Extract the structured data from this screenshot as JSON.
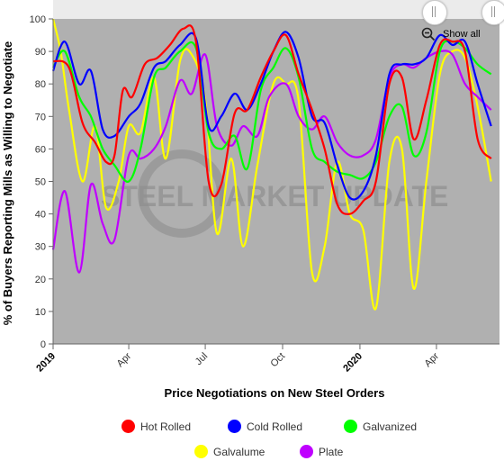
{
  "zoom": {
    "show_all_label": "Show all",
    "icon": "zoom-out-icon"
  },
  "watermark": {
    "text": "STEEL MARKET UPDATE"
  },
  "chart_data": {
    "type": "line",
    "xlabel": "Price Negotiations on New Steel Orders",
    "ylabel": "% of Buyers Reporting Mills as Willing to Negotiate",
    "ylim": [
      0,
      100
    ],
    "yticks": [
      0,
      10,
      20,
      30,
      40,
      50,
      60,
      70,
      80,
      90,
      100
    ],
    "xlim": [
      "2019-01-01",
      "2020-06-15"
    ],
    "xticks": [
      {
        "date": "2019-01-01",
        "label": "2019",
        "bold": true
      },
      {
        "date": "2019-04-01",
        "label": "Apr",
        "bold": false
      },
      {
        "date": "2019-07-01",
        "label": "Jul",
        "bold": false
      },
      {
        "date": "2019-10-01",
        "label": "Oct",
        "bold": false
      },
      {
        "date": "2020-01-01",
        "label": "2020",
        "bold": true
      },
      {
        "date": "2020-04-01",
        "label": "Apr",
        "bold": false
      }
    ],
    "grid": false,
    "legend_position": "bottom",
    "plot_background": "#b0b0b0",
    "series": [
      {
        "name": "Hot Rolled",
        "color": "#ff0000",
        "points": [
          [
            "2019-01-01",
            87
          ],
          [
            "2019-01-20",
            85
          ],
          [
            "2019-02-05",
            68
          ],
          [
            "2019-02-20",
            62
          ],
          [
            "2019-03-05",
            56
          ],
          [
            "2019-03-15",
            58
          ],
          [
            "2019-03-25",
            78
          ],
          [
            "2019-04-05",
            76
          ],
          [
            "2019-04-20",
            86
          ],
          [
            "2019-05-05",
            88
          ],
          [
            "2019-05-20",
            92
          ],
          [
            "2019-06-05",
            97
          ],
          [
            "2019-06-20",
            93
          ],
          [
            "2019-07-05",
            50
          ],
          [
            "2019-07-20",
            49
          ],
          [
            "2019-08-05",
            71
          ],
          [
            "2019-08-20",
            72
          ],
          [
            "2019-09-05",
            82
          ],
          [
            "2019-09-20",
            90
          ],
          [
            "2019-10-05",
            95
          ],
          [
            "2019-10-20",
            83
          ],
          [
            "2019-11-05",
            72
          ],
          [
            "2019-11-20",
            60
          ],
          [
            "2019-12-05",
            43
          ],
          [
            "2019-12-20",
            40
          ],
          [
            "2020-01-05",
            44
          ],
          [
            "2020-01-20",
            50
          ],
          [
            "2020-02-05",
            80
          ],
          [
            "2020-02-20",
            82
          ],
          [
            "2020-03-05",
            63
          ],
          [
            "2020-03-20",
            75
          ],
          [
            "2020-04-05",
            92
          ],
          [
            "2020-04-20",
            93
          ],
          [
            "2020-05-05",
            90
          ],
          [
            "2020-05-20",
            63
          ],
          [
            "2020-06-05",
            57
          ]
        ]
      },
      {
        "name": "Cold Rolled",
        "color": "#0000ff",
        "points": [
          [
            "2019-01-01",
            84
          ],
          [
            "2019-01-15",
            93
          ],
          [
            "2019-02-01",
            80
          ],
          [
            "2019-02-15",
            84
          ],
          [
            "2019-03-01",
            66
          ],
          [
            "2019-03-15",
            64
          ],
          [
            "2019-04-01",
            70
          ],
          [
            "2019-04-15",
            74
          ],
          [
            "2019-05-01",
            85
          ],
          [
            "2019-05-15",
            87
          ],
          [
            "2019-06-01",
            92
          ],
          [
            "2019-06-20",
            94
          ],
          [
            "2019-07-05",
            67
          ],
          [
            "2019-07-20",
            70
          ],
          [
            "2019-08-05",
            77
          ],
          [
            "2019-08-20",
            72
          ],
          [
            "2019-09-05",
            80
          ],
          [
            "2019-09-20",
            90
          ],
          [
            "2019-10-05",
            96
          ],
          [
            "2019-10-20",
            88
          ],
          [
            "2019-11-05",
            70
          ],
          [
            "2019-11-20",
            68
          ],
          [
            "2019-12-05",
            55
          ],
          [
            "2019-12-20",
            45
          ],
          [
            "2020-01-05",
            47
          ],
          [
            "2020-01-20",
            58
          ],
          [
            "2020-02-05",
            83
          ],
          [
            "2020-02-20",
            86
          ],
          [
            "2020-03-05",
            86
          ],
          [
            "2020-03-20",
            88
          ],
          [
            "2020-04-05",
            95
          ],
          [
            "2020-04-20",
            92
          ],
          [
            "2020-05-05",
            93
          ],
          [
            "2020-05-20",
            80
          ],
          [
            "2020-06-05",
            67
          ]
        ]
      },
      {
        "name": "Galvanized",
        "color": "#00ff00",
        "points": [
          [
            "2019-01-01",
            85
          ],
          [
            "2019-01-15",
            90
          ],
          [
            "2019-02-01",
            76
          ],
          [
            "2019-02-15",
            70
          ],
          [
            "2019-03-01",
            60
          ],
          [
            "2019-03-15",
            55
          ],
          [
            "2019-04-01",
            50
          ],
          [
            "2019-04-15",
            60
          ],
          [
            "2019-05-01",
            82
          ],
          [
            "2019-05-15",
            85
          ],
          [
            "2019-06-01",
            90
          ],
          [
            "2019-06-20",
            91
          ],
          [
            "2019-07-05",
            65
          ],
          [
            "2019-07-20",
            60
          ],
          [
            "2019-08-05",
            64
          ],
          [
            "2019-08-20",
            54
          ],
          [
            "2019-09-05",
            78
          ],
          [
            "2019-09-20",
            85
          ],
          [
            "2019-10-05",
            91
          ],
          [
            "2019-10-20",
            82
          ],
          [
            "2019-11-05",
            60
          ],
          [
            "2019-11-20",
            56
          ],
          [
            "2019-12-05",
            53
          ],
          [
            "2019-12-20",
            52
          ],
          [
            "2020-01-05",
            51
          ],
          [
            "2020-01-20",
            56
          ],
          [
            "2020-02-05",
            70
          ],
          [
            "2020-02-20",
            73
          ],
          [
            "2020-03-05",
            58
          ],
          [
            "2020-03-20",
            65
          ],
          [
            "2020-04-05",
            90
          ],
          [
            "2020-04-20",
            93
          ],
          [
            "2020-05-05",
            91
          ],
          [
            "2020-05-20",
            86
          ],
          [
            "2020-06-05",
            83
          ]
        ]
      },
      {
        "name": "Galvalume",
        "color": "#ffff00",
        "points": [
          [
            "2019-01-01",
            100
          ],
          [
            "2019-01-10",
            90
          ],
          [
            "2019-01-20",
            72
          ],
          [
            "2019-02-05",
            50
          ],
          [
            "2019-02-20",
            67
          ],
          [
            "2019-03-05",
            42
          ],
          [
            "2019-03-20",
            50
          ],
          [
            "2019-04-01",
            67
          ],
          [
            "2019-04-15",
            65
          ],
          [
            "2019-05-01",
            82
          ],
          [
            "2019-05-15",
            57
          ],
          [
            "2019-06-01",
            87
          ],
          [
            "2019-06-15",
            89
          ],
          [
            "2019-07-01",
            75
          ],
          [
            "2019-07-15",
            34
          ],
          [
            "2019-08-01",
            57
          ],
          [
            "2019-08-15",
            30
          ],
          [
            "2019-09-01",
            55
          ],
          [
            "2019-09-20",
            80
          ],
          [
            "2019-10-05",
            80
          ],
          [
            "2019-10-20",
            75
          ],
          [
            "2019-11-05",
            22
          ],
          [
            "2019-11-20",
            30
          ],
          [
            "2019-12-05",
            56
          ],
          [
            "2019-12-20",
            40
          ],
          [
            "2020-01-05",
            35
          ],
          [
            "2020-01-20",
            11
          ],
          [
            "2020-02-05",
            56
          ],
          [
            "2020-02-20",
            60
          ],
          [
            "2020-03-05",
            17
          ],
          [
            "2020-03-20",
            50
          ],
          [
            "2020-04-05",
            83
          ],
          [
            "2020-04-20",
            90
          ],
          [
            "2020-05-05",
            88
          ],
          [
            "2020-05-20",
            73
          ],
          [
            "2020-06-05",
            50
          ]
        ]
      },
      {
        "name": "Plate",
        "color": "#bf00ff",
        "points": [
          [
            "2019-01-01",
            29
          ],
          [
            "2019-01-15",
            47
          ],
          [
            "2019-02-01",
            22
          ],
          [
            "2019-02-15",
            49
          ],
          [
            "2019-03-01",
            37
          ],
          [
            "2019-03-15",
            32
          ],
          [
            "2019-04-01",
            58
          ],
          [
            "2019-04-15",
            57
          ],
          [
            "2019-05-01",
            60
          ],
          [
            "2019-05-15",
            67
          ],
          [
            "2019-06-01",
            81
          ],
          [
            "2019-06-15",
            77
          ],
          [
            "2019-07-01",
            89
          ],
          [
            "2019-07-15",
            67
          ],
          [
            "2019-08-01",
            61
          ],
          [
            "2019-08-15",
            67
          ],
          [
            "2019-09-01",
            64
          ],
          [
            "2019-09-15",
            76
          ],
          [
            "2019-10-05",
            80
          ],
          [
            "2019-10-20",
            70
          ],
          [
            "2019-11-05",
            66
          ],
          [
            "2019-11-20",
            70
          ],
          [
            "2019-12-05",
            62
          ],
          [
            "2019-12-20",
            58
          ],
          [
            "2020-01-05",
            58
          ],
          [
            "2020-01-20",
            63
          ],
          [
            "2020-02-05",
            82
          ],
          [
            "2020-02-20",
            86
          ],
          [
            "2020-03-05",
            85
          ],
          [
            "2020-03-20",
            88
          ],
          [
            "2020-04-05",
            90
          ],
          [
            "2020-04-20",
            89
          ],
          [
            "2020-05-05",
            80
          ],
          [
            "2020-05-20",
            76
          ],
          [
            "2020-06-05",
            72
          ]
        ]
      }
    ]
  }
}
